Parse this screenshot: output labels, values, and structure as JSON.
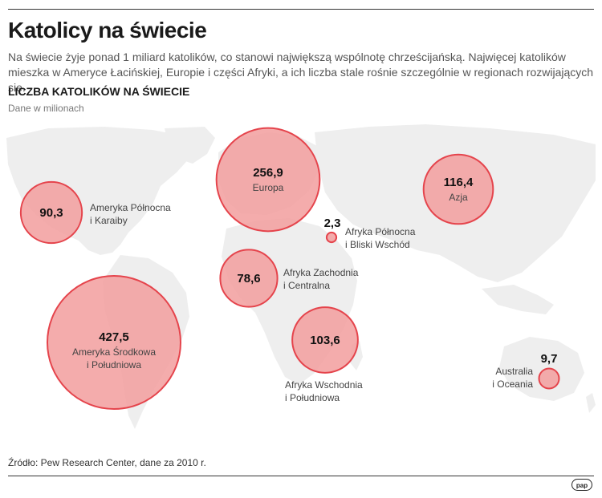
{
  "title": "Katolicy na świecie",
  "subtitle": "Na świecie żyje ponad 1 miliard katolików, co stanowi największą wspólnotę chrześcijańską. Najwięcej katolików mieszka w Ameryce Łacińskiej, Europie i części Afryki, a ich liczba stale rośnie szczególnie w regionach rozwijających się.",
  "section_title": "LICZBA KATOLIKÓW NA ŚWIECIE",
  "units": "Dane w milionach",
  "source": "Źródło: Pew Research Center, dane za 2010 r.",
  "logo": "pap",
  "colors": {
    "bubble_fill": "#f29d9d",
    "bubble_stroke": "#e5444c",
    "land": "#eeeeee"
  },
  "chart_data": {
    "type": "bubble-map",
    "title": "LICZBA KATOLIKÓW NA ŚWIECIE",
    "unit": "Dane w milionach",
    "series": [
      {
        "region": [
          "Ameryka Środkowa",
          "i Południowa"
        ],
        "value": 427.5,
        "label": "427,5"
      },
      {
        "region": [
          "Europa"
        ],
        "value": 256.9,
        "label": "256,9"
      },
      {
        "region": [
          "Azja"
        ],
        "value": 116.4,
        "label": "116,4"
      },
      {
        "region": [
          "Afryka Wschodnia",
          "i Południowa"
        ],
        "value": 103.6,
        "label": "103,6"
      },
      {
        "region": [
          "Ameryka Północna",
          "i Karaiby"
        ],
        "value": 90.3,
        "label": "90,3"
      },
      {
        "region": [
          "Afryka Zachodnia",
          "i Centralna"
        ],
        "value": 78.6,
        "label": "78,6"
      },
      {
        "region": [
          "Australia",
          "i Oceania"
        ],
        "value": 9.7,
        "label": "9,7"
      },
      {
        "region": [
          "Afryka Północna",
          "i Bliski Wschód"
        ],
        "value": 2.3,
        "label": "2,3"
      }
    ]
  }
}
